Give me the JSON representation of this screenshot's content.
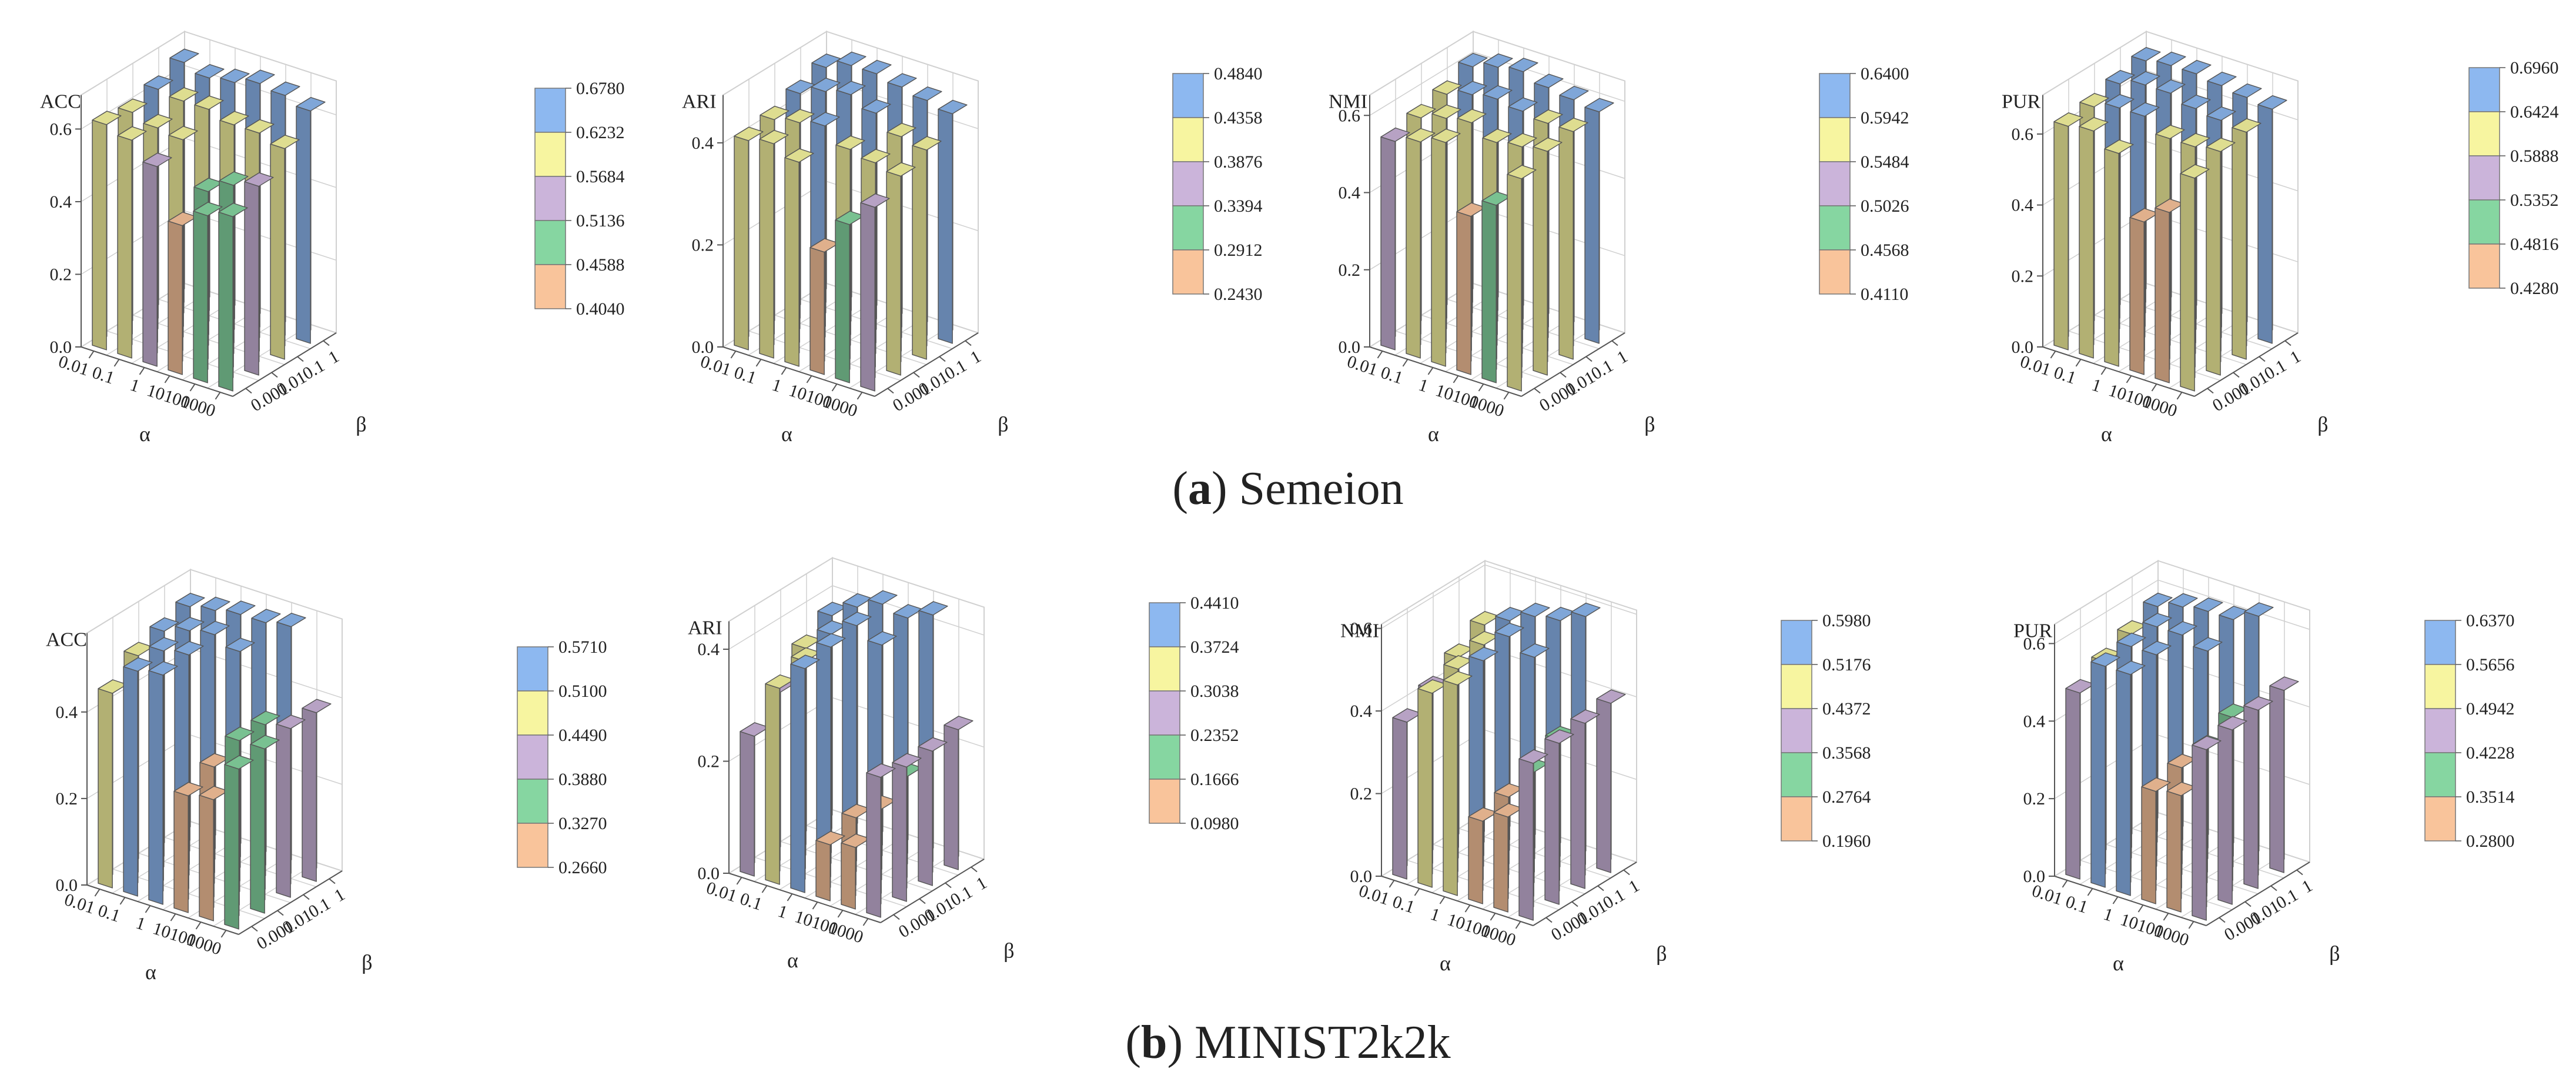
{
  "figure": {
    "rows": [
      {
        "label": "a",
        "name": "Semeion"
      },
      {
        "label": "b",
        "name": "MINIST2k2k"
      }
    ]
  },
  "alpha_values": [
    "0.01",
    "0.1",
    "1",
    "10",
    "100",
    "1000"
  ],
  "beta_values": [
    "0.001",
    "0.01",
    "0.1",
    "1"
  ],
  "alpha_label": "α",
  "beta_label": "β",
  "chart_data": [
    {
      "type": "bar3d",
      "dataset": "Semeion",
      "title": "ACC",
      "xlabel": "α",
      "ylabel": "β",
      "zlim": [
        0,
        0.68
      ],
      "zticks": [
        "0.0",
        "0.2",
        "0.4",
        "0.6"
      ],
      "colorbar": [
        "0.6780",
        "0.6232",
        "0.5684",
        "0.5136",
        "0.4588",
        "0.4040"
      ],
      "values": [
        [
          0.62,
          0.6,
          0.55,
          0.41,
          0.46,
          0.48
        ],
        [
          0.61,
          0.59,
          0.58,
          0.46,
          0.5,
          0.52
        ],
        [
          0.63,
          0.62,
          0.62,
          0.6,
          0.6,
          0.58
        ],
        [
          0.66,
          0.64,
          0.65,
          0.67,
          0.66,
          0.64
        ]
      ]
    },
    {
      "type": "bar3d",
      "dataset": "Semeion",
      "title": "ARI",
      "xlabel": "α",
      "ylabel": "β",
      "zlim": [
        0,
        0.484
      ],
      "zticks": [
        "0.0",
        "0.2",
        "0.4"
      ],
      "colorbar": [
        "0.4840",
        "0.4358",
        "0.3876",
        "0.3394",
        "0.2912",
        "0.2430"
      ],
      "values": [
        [
          0.41,
          0.42,
          0.4,
          0.24,
          0.31,
          0.36
        ],
        [
          0.42,
          0.43,
          0.44,
          0.41,
          0.4,
          0.39
        ],
        [
          0.44,
          0.46,
          0.47,
          0.45,
          0.42,
          0.41
        ],
        [
          0.46,
          0.48,
          0.48,
          0.47,
          0.46,
          0.45
        ]
      ]
    },
    {
      "type": "bar3d",
      "dataset": "Semeion",
      "title": "NMI",
      "xlabel": "α",
      "ylabel": "β",
      "zlim": [
        0,
        0.64
      ],
      "zticks": [
        "0.0",
        "0.2",
        "0.4",
        "0.6"
      ],
      "colorbar": [
        "0.6400",
        "0.5942",
        "0.5484",
        "0.5026",
        "0.4568",
        "0.4110"
      ],
      "values": [
        [
          0.54,
          0.56,
          0.58,
          0.41,
          0.46,
          0.55
        ],
        [
          0.56,
          0.58,
          0.59,
          0.56,
          0.57,
          0.58
        ],
        [
          0.58,
          0.6,
          0.61,
          0.6,
          0.59,
          0.59
        ],
        [
          0.61,
          0.63,
          0.64,
          0.62,
          0.61,
          0.6
        ]
      ]
    },
    {
      "type": "bar3d",
      "dataset": "Semeion",
      "title": "PUR",
      "xlabel": "α",
      "ylabel": "β",
      "zlim": [
        0,
        0.696
      ],
      "zticks": [
        "0.0",
        "0.2",
        "0.4",
        "0.6"
      ],
      "colorbar": [
        "0.6960",
        "0.6424",
        "0.5888",
        "0.5352",
        "0.4816",
        "0.4280"
      ],
      "values": [
        [
          0.63,
          0.64,
          0.6,
          0.43,
          0.48,
          0.6
        ],
        [
          0.64,
          0.66,
          0.66,
          0.62,
          0.62,
          0.63
        ],
        [
          0.66,
          0.68,
          0.68,
          0.66,
          0.65,
          0.64
        ],
        [
          0.68,
          0.69,
          0.69,
          0.68,
          0.67,
          0.66
        ]
      ]
    },
    {
      "type": "bar3d",
      "dataset": "MINIST2k2k",
      "title": "ACC",
      "xlabel": "α",
      "ylabel": "β",
      "zlim": [
        0,
        0.571
      ],
      "zticks": [
        "0.0",
        "0.2",
        "0.4"
      ],
      "colorbar": [
        "0.5710",
        "0.5100",
        "0.4490",
        "0.3880",
        "0.3270",
        "0.2660"
      ],
      "values": [
        [
          0.45,
          0.52,
          0.53,
          0.27,
          0.28,
          0.37
        ],
        [
          0.5,
          0.53,
          0.54,
          0.3,
          0.38,
          0.38
        ],
        [
          0.52,
          0.54,
          0.55,
          0.53,
          0.38,
          0.39
        ],
        [
          0.54,
          0.55,
          0.56,
          0.56,
          0.57,
          0.39
        ]
      ]
    },
    {
      "type": "bar3d",
      "dataset": "MINIST2k2k",
      "title": "ARI",
      "xlabel": "α",
      "ylabel": "β",
      "zlim": [
        0,
        0.441
      ],
      "zticks": [
        "0.0",
        "0.2",
        "0.4"
      ],
      "colorbar": [
        "0.4410",
        "0.3724",
        "0.3038",
        "0.2352",
        "0.1666",
        "0.0980"
      ],
      "values": [
        [
          0.25,
          0.35,
          0.4,
          0.1,
          0.11,
          0.25
        ],
        [
          0.3,
          0.37,
          0.41,
          0.12,
          0.15,
          0.24
        ],
        [
          0.35,
          0.39,
          0.42,
          0.4,
          0.18,
          0.24
        ],
        [
          0.38,
          0.41,
          0.43,
          0.42,
          0.44,
          0.25
        ]
      ]
    },
    {
      "type": "bar3d",
      "dataset": "MINIST2k2k",
      "title": "NMI",
      "xlabel": "α",
      "ylabel": "β",
      "zlim": [
        0,
        0.598
      ],
      "zticks": [
        "0.0",
        "0.2",
        "0.4",
        "0.6"
      ],
      "colorbar": [
        "0.5980",
        "0.5176",
        "0.4372",
        "0.3568",
        "0.2764",
        "0.1960"
      ],
      "values": [
        [
          0.38,
          0.47,
          0.51,
          0.2,
          0.23,
          0.38
        ],
        [
          0.42,
          0.49,
          0.53,
          0.22,
          0.3,
          0.39
        ],
        [
          0.46,
          0.51,
          0.55,
          0.52,
          0.34,
          0.4
        ],
        [
          0.5,
          0.53,
          0.56,
          0.57,
          0.6,
          0.41
        ]
      ]
    },
    {
      "type": "bar3d",
      "dataset": "MINIST2k2k",
      "title": "PUR",
      "xlabel": "α",
      "ylabel": "β",
      "zlim": [
        0,
        0.637
      ],
      "zticks": [
        "0.0",
        "0.2",
        "0.4",
        "0.6"
      ],
      "colorbar": [
        "0.6370",
        "0.5656",
        "0.4942",
        "0.4228",
        "0.3514",
        "0.2800"
      ],
      "values": [
        [
          0.48,
          0.57,
          0.57,
          0.29,
          0.3,
          0.44
        ],
        [
          0.52,
          0.58,
          0.58,
          0.31,
          0.38,
          0.45
        ],
        [
          0.55,
          0.59,
          0.59,
          0.57,
          0.42,
          0.46
        ],
        [
          0.58,
          0.6,
          0.61,
          0.61,
          0.64,
          0.47
        ]
      ]
    }
  ],
  "palette": {
    "blue": "#8db8f0",
    "yellow": "#f7f5a0",
    "purple": "#cbb4da",
    "green": "#86d6a1",
    "orange": "#f9c49b",
    "grid": "#d0d0d0",
    "axis": "#555555",
    "text": "#222222"
  }
}
